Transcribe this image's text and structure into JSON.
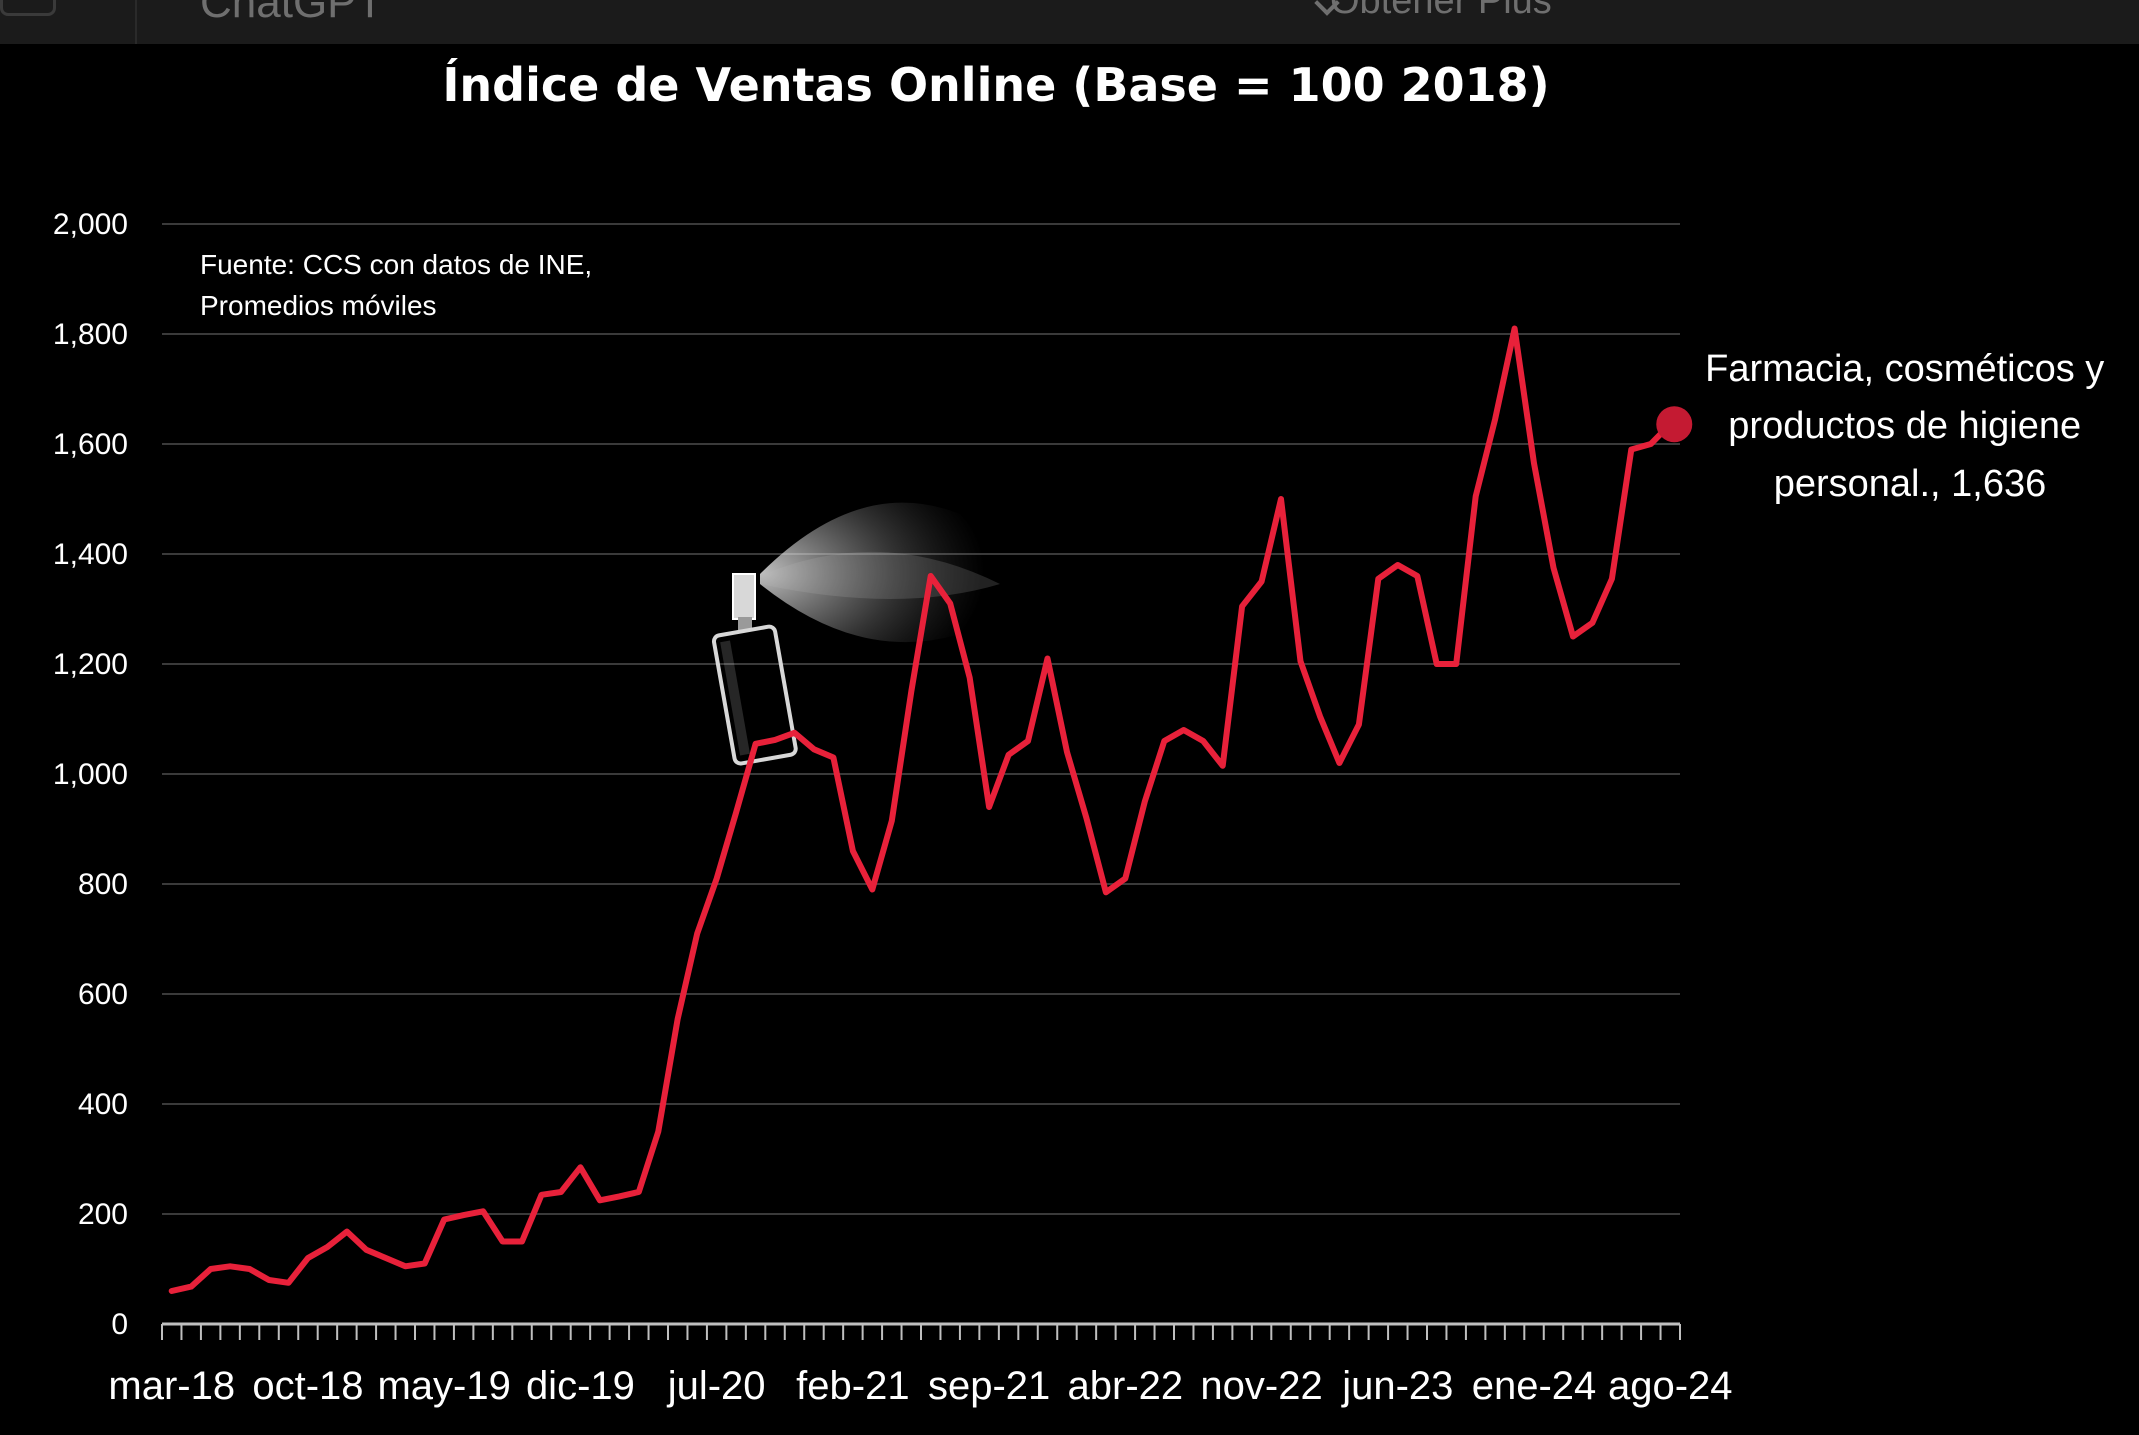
{
  "window": {
    "title": "ChatGPT",
    "right_label": "Obtener Plus"
  },
  "chart_data": {
    "type": "line",
    "title": "Índice de Ventas Online (Base = 100 2018)",
    "source_note": [
      "Fuente: CCS con datos de INE,",
      "Promedios móviles"
    ],
    "ylim": [
      0,
      2000
    ],
    "yticks": [
      0,
      200,
      400,
      600,
      800,
      1000,
      1200,
      1400,
      1600,
      1800,
      2000
    ],
    "ytick_labels": [
      "0",
      "200",
      "400",
      "600",
      "800",
      "1,000",
      "1,200",
      "1,400",
      "1,600",
      "1,800",
      "2,000"
    ],
    "xtick_labels": [
      "mar-18",
      "oct-18",
      "may-19",
      "dic-19",
      "jul-20",
      "feb-21",
      "sep-21",
      "abr-22",
      "nov-22",
      "jun-23",
      "ene-24",
      "ago-24"
    ],
    "xtick_every": 7,
    "grid": true,
    "line_color": "#e8213a",
    "series": [
      {
        "values": [
          60,
          68,
          100,
          105,
          100,
          80,
          75,
          120,
          140,
          168,
          135,
          120,
          105,
          110,
          190,
          198,
          205,
          150,
          150,
          235,
          240,
          285,
          225,
          232,
          240,
          350,
          555,
          710,
          810,
          930,
          1055,
          1062,
          1075,
          1045,
          1030,
          860,
          790,
          915,
          1150,
          1360,
          1310,
          1175,
          940,
          1035,
          1060,
          1210,
          1040,
          920,
          785,
          810,
          950,
          1060,
          1080,
          1060,
          1015,
          1305,
          1350,
          1500,
          1205,
          1105,
          1020,
          1090,
          1355,
          1380,
          1360,
          1200,
          1200,
          1505,
          1645,
          1810,
          1565,
          1375,
          1250,
          1275,
          1355,
          1590,
          1600,
          1636
        ]
      }
    ],
    "end_label": [
      "Farmacia, cosméticos y",
      "productos de higiene",
      "personal., 1,636"
    ]
  }
}
